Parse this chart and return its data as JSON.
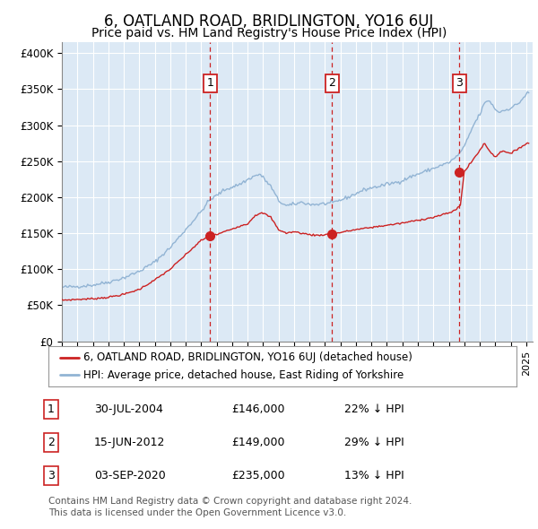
{
  "title": "6, OATLAND ROAD, BRIDLINGTON, YO16 6UJ",
  "subtitle": "Price paid vs. HM Land Registry's House Price Index (HPI)",
  "title_fontsize": 12,
  "subtitle_fontsize": 10,
  "fig_bg_color": "#ffffff",
  "plot_bg_color": "#dce9f5",
  "grid_color": "white",
  "hpi_color": "#92b4d4",
  "price_color": "#cc2222",
  "yticks": [
    0,
    50000,
    100000,
    150000,
    200000,
    250000,
    300000,
    350000,
    400000
  ],
  "ytick_labels": [
    "£0",
    "£50K",
    "£100K",
    "£150K",
    "£200K",
    "£250K",
    "£300K",
    "£350K",
    "£400K"
  ],
  "sale_dates": [
    "2004-07-30",
    "2012-06-15",
    "2020-09-03"
  ],
  "sale_prices": [
    146000,
    149000,
    235000
  ],
  "sale_labels": [
    "1",
    "2",
    "3"
  ],
  "sale_label_border_color": "#cc2222",
  "sale_vline_color": "#cc2222",
  "legend_entries": [
    "6, OATLAND ROAD, BRIDLINGTON, YO16 6UJ (detached house)",
    "HPI: Average price, detached house, East Riding of Yorkshire"
  ],
  "table_rows": [
    [
      "1",
      "30-JUL-2004",
      "£146,000",
      "22% ↓ HPI"
    ],
    [
      "2",
      "15-JUN-2012",
      "£149,000",
      "29% ↓ HPI"
    ],
    [
      "3",
      "03-SEP-2020",
      "£235,000",
      "13% ↓ HPI"
    ]
  ],
  "footnote": "Contains HM Land Registry data © Crown copyright and database right 2024.\nThis data is licensed under the Open Government Licence v3.0.",
  "footnote_fontsize": 7.5,
  "hpi_anchors_x": [
    1995.0,
    1996.0,
    1997.0,
    1998.0,
    1999.0,
    2000.0,
    2001.0,
    2002.0,
    2003.0,
    2004.0,
    2004.5,
    2005.5,
    2006.5,
    2007.3,
    2007.8,
    2008.5,
    2009.0,
    2009.5,
    2010.0,
    2010.5,
    2011.0,
    2011.5,
    2012.0,
    2012.5,
    2013.0,
    2013.5,
    2014.0,
    2014.5,
    2015.0,
    2015.5,
    2016.0,
    2016.5,
    2017.0,
    2017.5,
    2018.0,
    2018.5,
    2019.0,
    2019.5,
    2020.0,
    2020.5,
    2021.0,
    2021.3,
    2021.6,
    2022.0,
    2022.3,
    2022.6,
    2022.9,
    2023.2,
    2023.5,
    2023.8,
    2024.1,
    2024.5,
    2025.1
  ],
  "hpi_anchors_y": [
    75000,
    76000,
    78000,
    82000,
    88000,
    97000,
    110000,
    130000,
    155000,
    180000,
    195000,
    210000,
    218000,
    228000,
    232000,
    215000,
    195000,
    188000,
    190000,
    193000,
    190000,
    190000,
    191000,
    192000,
    196000,
    200000,
    205000,
    210000,
    213000,
    215000,
    218000,
    220000,
    223000,
    228000,
    232000,
    236000,
    240000,
    244000,
    248000,
    256000,
    270000,
    285000,
    300000,
    315000,
    330000,
    335000,
    325000,
    318000,
    320000,
    322000,
    325000,
    330000,
    345000
  ],
  "price_anchors_x": [
    1995.0,
    1996.0,
    1997.0,
    1998.0,
    1999.0,
    2000.0,
    2001.0,
    2002.0,
    2003.0,
    2004.0,
    2004.6,
    2005.0,
    2005.5,
    2006.0,
    2006.5,
    2007.0,
    2007.5,
    2008.0,
    2008.5,
    2009.0,
    2009.5,
    2010.0,
    2010.5,
    2011.0,
    2011.5,
    2012.0,
    2012.5,
    2013.0,
    2014.0,
    2015.0,
    2016.0,
    2017.0,
    2018.0,
    2019.0,
    2019.5,
    2020.0,
    2020.5,
    2020.75,
    2021.0,
    2021.5,
    2022.0,
    2022.3,
    2022.6,
    2023.0,
    2023.5,
    2024.0,
    2024.5,
    2025.1
  ],
  "price_anchors_y": [
    57000,
    58000,
    59000,
    61000,
    65000,
    72000,
    85000,
    100000,
    120000,
    140000,
    146000,
    148000,
    152000,
    156000,
    160000,
    163000,
    175000,
    178000,
    172000,
    155000,
    150000,
    152000,
    150000,
    148000,
    147000,
    148000,
    149000,
    151000,
    155000,
    158000,
    161000,
    164000,
    168000,
    172000,
    175000,
    178000,
    183000,
    190000,
    235000,
    250000,
    265000,
    275000,
    265000,
    256000,
    265000,
    260000,
    268000,
    275000
  ]
}
